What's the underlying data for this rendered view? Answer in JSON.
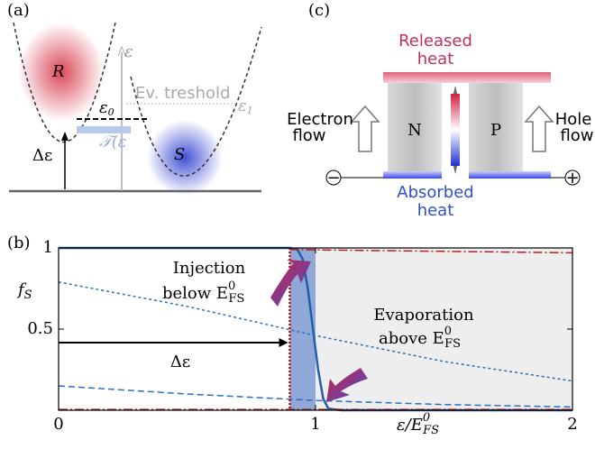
{
  "panel_a": {
    "label": "(a)",
    "R": "R",
    "S": "S",
    "epsilon": "ε",
    "epsilon0": "ε",
    "epsilon0_sub": "0",
    "threshold": "Ev. treshold",
    "epsilon1": "ε",
    "epsilon1_sub": "1",
    "transmission": "𝒯(ε",
    "delta": "Δε"
  },
  "panel_c": {
    "label": "(c)",
    "released": [
      "Released",
      "heat"
    ],
    "absorbed": [
      "Absorbed",
      "heat"
    ],
    "electron_flow": [
      "Electron",
      "flow"
    ],
    "hole_flow": [
      "Hole",
      "flow"
    ],
    "N": "N",
    "P": "P",
    "minus": "−",
    "plus": "+"
  },
  "chart_data": {
    "type": "line",
    "label": "(b)",
    "ylabel": "f",
    "ylabel_sub": "S",
    "xlabel": "ε/E",
    "xlabel_sup": "0",
    "xlabel_sub": "FS",
    "xlim": [
      0,
      2
    ],
    "ylim": [
      0,
      1
    ],
    "xticks": [
      0,
      1,
      2
    ],
    "yticks": [
      0.5,
      1
    ],
    "shaded_regions": [
      {
        "xlim": [
          0.9,
          1.0
        ],
        "color": "#8fa8d8"
      },
      {
        "xlim": [
          1.0,
          2.0
        ],
        "color": "#eeeeee"
      }
    ],
    "series": [
      {
        "color": "#1f5fae",
        "dash": "solid",
        "x": [
          0,
          0.9,
          0.93,
          0.95,
          0.97,
          0.99,
          1.01,
          1.03,
          1.05,
          1.1,
          2
        ],
        "values": [
          1,
          1,
          0.99,
          0.93,
          0.75,
          0.5,
          0.25,
          0.07,
          0.01,
          0,
          0
        ]
      },
      {
        "color": "#2a6fc0",
        "dash": "dotted",
        "x": [
          0,
          0.5,
          1,
          1.5,
          2
        ],
        "values": [
          0.79,
          0.64,
          0.46,
          0.3,
          0.18
        ]
      },
      {
        "color": "#2a6fc0",
        "dash": "dashed",
        "x": [
          0,
          0.5,
          1,
          1.5,
          2
        ],
        "values": [
          0.15,
          0.1,
          0.06,
          0.035,
          0.02
        ]
      },
      {
        "color": "#b22222",
        "dash": "dashdot",
        "x": [
          0.9,
          2
        ],
        "values": [
          0.99,
          0.97
        ]
      },
      {
        "color": "#b22222",
        "dash": "dashdot",
        "x": [
          0,
          2
        ],
        "values": [
          0.005,
          0.005
        ]
      }
    ],
    "threshold_x": 0.9,
    "annotations": {
      "injection": "Injection",
      "injection2": "below E",
      "evaporation": "Evaporation",
      "evaporation2": "above E",
      "sup": "0",
      "sub": "FS",
      "delta": "Δε"
    }
  }
}
